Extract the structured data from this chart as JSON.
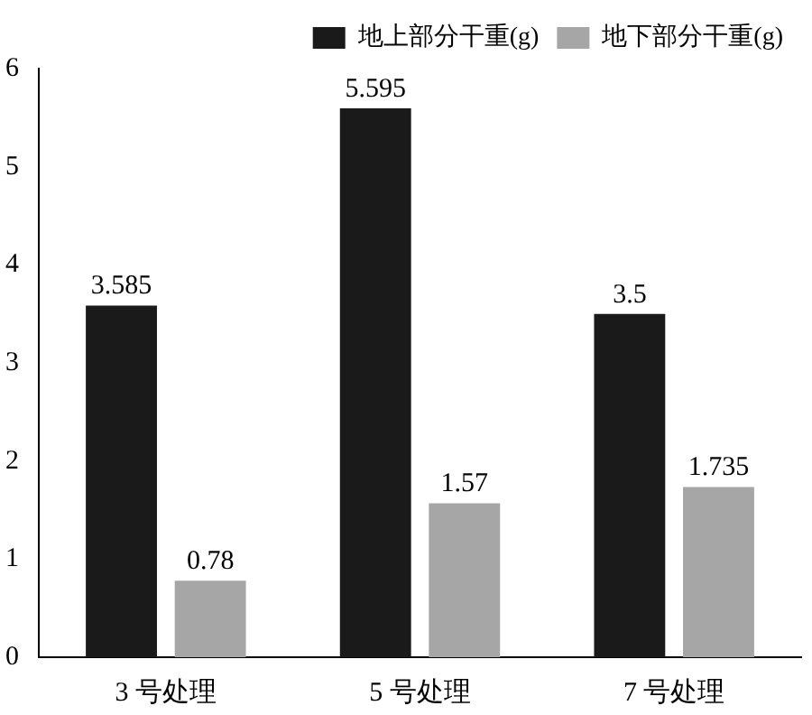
{
  "chart_data": {
    "type": "bar",
    "categories": [
      "3 号处理",
      "5 号处理",
      "7 号处理"
    ],
    "series": [
      {
        "name": "地上部分干重(g)",
        "color": "#1a1a1a",
        "values": [
          3.585,
          5.595,
          3.5
        ]
      },
      {
        "name": "地下部分干重(g)",
        "color": "#a6a6a6",
        "values": [
          0.78,
          1.57,
          1.735
        ]
      }
    ],
    "ylim": [
      0,
      6
    ],
    "yticks": [
      0,
      1,
      2,
      3,
      4,
      5,
      6
    ],
    "grid": false,
    "legend": "top right",
    "data_labels": true
  }
}
